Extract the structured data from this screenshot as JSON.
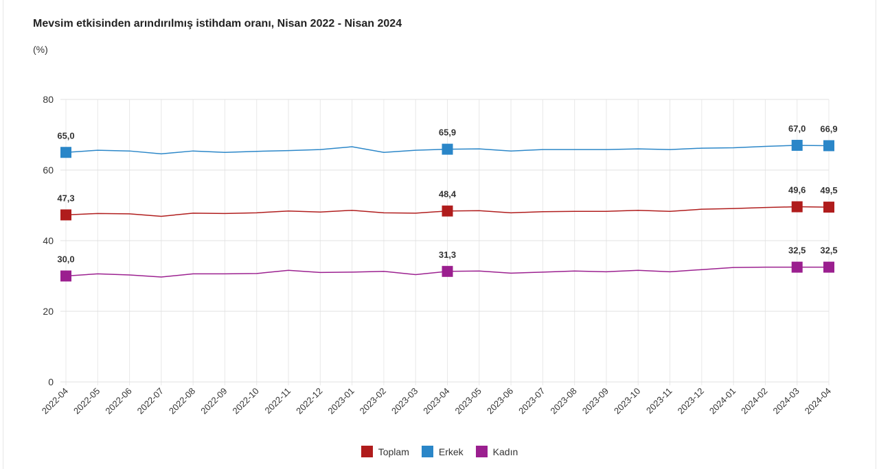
{
  "chart_data": {
    "type": "line",
    "title": "Mevsim etkisinden arındırılmış istihdam oranı, Nisan 2022 - Nisan 2024",
    "ylabel": "(%)",
    "xlabel": "",
    "ylim": [
      0,
      80
    ],
    "yticks": [
      0,
      20,
      40,
      60,
      80
    ],
    "grid": true,
    "legend": "bottom",
    "x": [
      "2022-04",
      "2022-05",
      "2022-06",
      "2022-07",
      "2022-08",
      "2022-09",
      "2022-10",
      "2022-11",
      "2022-12",
      "2023-01",
      "2023-02",
      "2023-03",
      "2023-04",
      "2023-05",
      "2023-06",
      "2023-07",
      "2023-08",
      "2023-09",
      "2023-10",
      "2023-11",
      "2023-12",
      "2024-01",
      "2024-02",
      "2024-03",
      "2024-04"
    ],
    "labeled_points": [
      0,
      12,
      23,
      24
    ],
    "series": [
      {
        "name": "Toplam",
        "color": "#b01c1c",
        "values": [
          47.3,
          47.7,
          47.6,
          46.9,
          47.8,
          47.7,
          47.9,
          48.4,
          48.1,
          48.6,
          47.9,
          47.8,
          48.4,
          48.5,
          47.9,
          48.2,
          48.3,
          48.3,
          48.6,
          48.3,
          48.9,
          49.1,
          49.4,
          49.6,
          49.5
        ],
        "data_labels": [
          "47,3",
          "48,4",
          "49,6",
          "49,5"
        ]
      },
      {
        "name": "Erkek",
        "color": "#2a86c8",
        "values": [
          65.0,
          65.6,
          65.4,
          64.6,
          65.4,
          65.0,
          65.3,
          65.5,
          65.8,
          66.6,
          65.0,
          65.6,
          65.9,
          66.0,
          65.4,
          65.8,
          65.8,
          65.8,
          66.0,
          65.8,
          66.2,
          66.3,
          66.7,
          67.0,
          66.9
        ],
        "data_labels": [
          "65,0",
          "65,9",
          "67,0",
          "66,9"
        ]
      },
      {
        "name": "Kadın",
        "color": "#9b1f8f",
        "values": [
          30.0,
          30.6,
          30.3,
          29.7,
          30.6,
          30.6,
          30.7,
          31.6,
          31.0,
          31.1,
          31.3,
          30.4,
          31.3,
          31.4,
          30.8,
          31.1,
          31.4,
          31.2,
          31.6,
          31.2,
          31.8,
          32.4,
          32.5,
          32.5,
          32.5
        ],
        "data_labels": [
          "30,0",
          "31,3",
          "32,5",
          "32,5"
        ]
      }
    ]
  }
}
